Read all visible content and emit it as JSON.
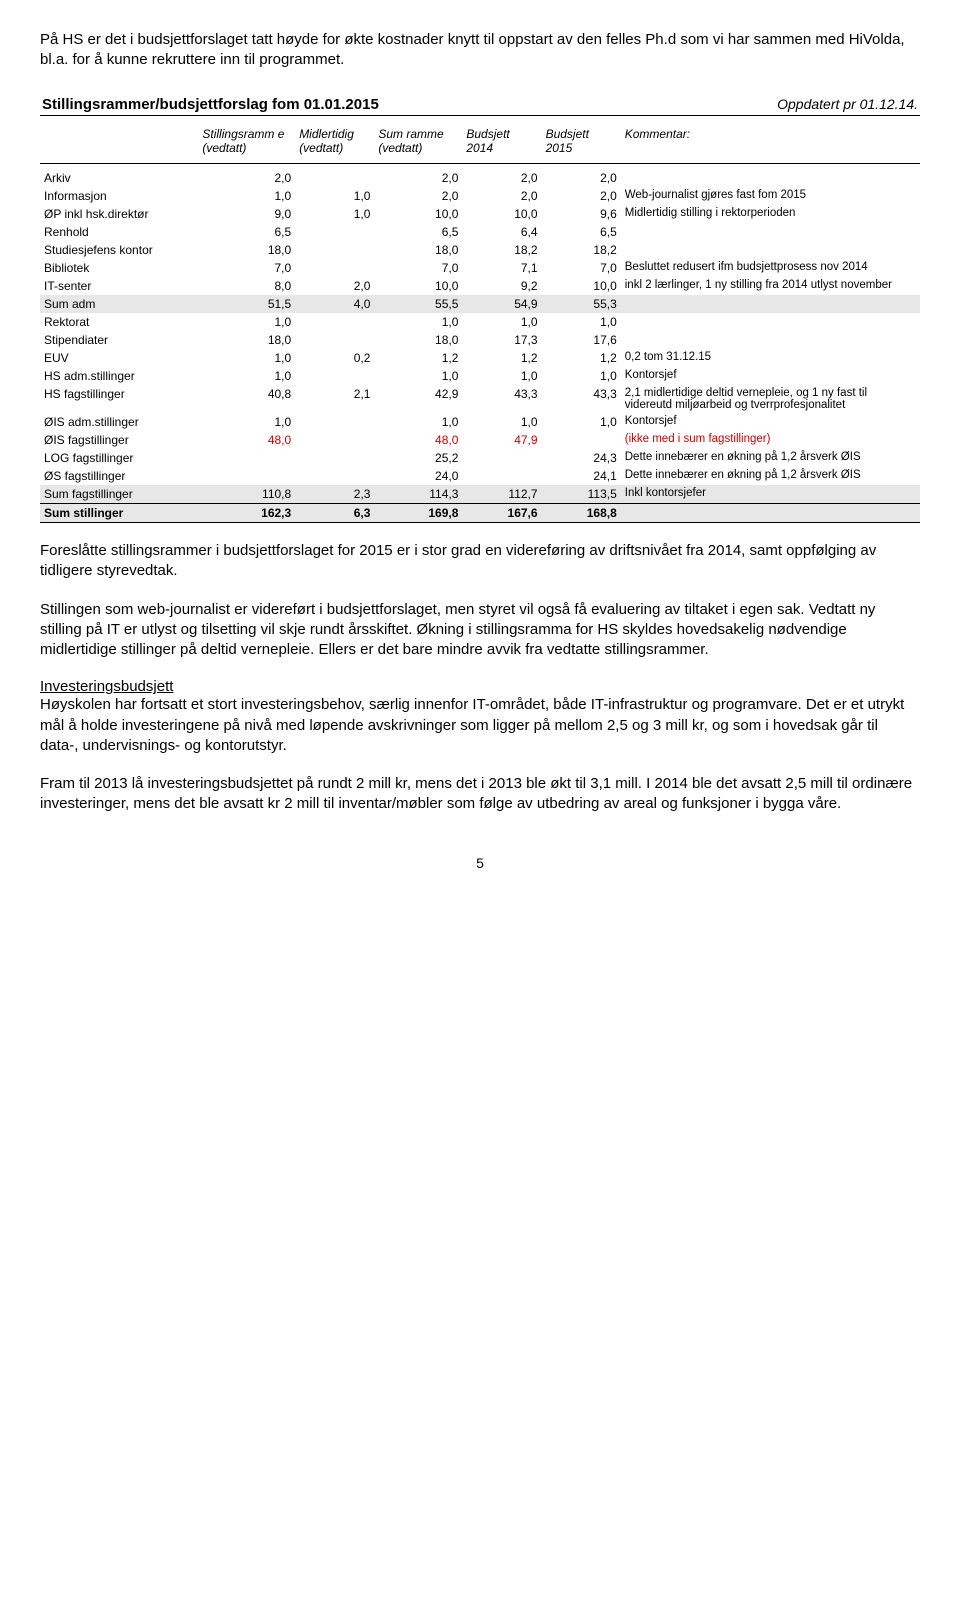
{
  "intro": "På HS er det i budsjettforslaget tatt høyde for økte kostnader knytt til oppstart av den felles Ph.d som vi har sammen med HiVolda, bl.a. for å kunne rekruttere inn til programmet.",
  "table": {
    "title": "Stillingsrammer/budsjettforslag fom 01.01.2015",
    "updated": "Oppdatert pr 01.12.14.",
    "headers": {
      "c0": "",
      "c1": "Stillingsramm e (vedtatt)",
      "c2": "Midlertidig (vedtatt)",
      "c3": "Sum ramme (vedtatt)",
      "c4": "Budsjett 2014",
      "c5": "Budsjett 2015",
      "c6": "Kommentar:"
    },
    "col_widths": [
      "18%",
      "11%",
      "9%",
      "10%",
      "9%",
      "9%",
      "34%"
    ],
    "header_bg": "#d6d6d6",
    "sum_bg": "#e7e7e7",
    "red_color": "#cc0000",
    "font_size_pt": 9,
    "rows": [
      {
        "label": "Arkiv",
        "c1": "2,0",
        "c2": "",
        "c3": "2,0",
        "c4": "2,0",
        "c5": "2,0",
        "comment": ""
      },
      {
        "label": "Informasjon",
        "c1": "1,0",
        "c2": "1,0",
        "c3": "2,0",
        "c4": "2,0",
        "c5": "2,0",
        "comment": "Web-journalist gjøres fast fom 2015"
      },
      {
        "label": "ØP inkl hsk.direktør",
        "c1": "9,0",
        "c2": "1,0",
        "c3": "10,0",
        "c4": "10,0",
        "c5": "9,6",
        "comment": "Midlertidig stilling i rektorperioden"
      },
      {
        "label": "Renhold",
        "c1": "6,5",
        "c2": "",
        "c3": "6,5",
        "c4": "6,4",
        "c5": "6,5",
        "comment": ""
      },
      {
        "label": "Studiesjefens kontor",
        "c1": "18,0",
        "c2": "",
        "c3": "18,0",
        "c4": "18,2",
        "c5": "18,2",
        "comment": ""
      },
      {
        "label": "Bibliotek",
        "c1": "7,0",
        "c2": "",
        "c3": "7,0",
        "c4": "7,1",
        "c5": "7,0",
        "comment": "Besluttet redusert ifm budsjettprosess nov 2014"
      },
      {
        "label": "IT-senter",
        "c1": "8,0",
        "c2": "2,0",
        "c3": "10,0",
        "c4": "9,2",
        "c5": "10,0",
        "comment": "inkl 2 lærlinger, 1 ny stilling fra 2014 utlyst november"
      }
    ],
    "sum_adm": {
      "label": "Sum adm",
      "c1": "51,5",
      "c2": "4,0",
      "c3": "55,5",
      "c4": "54,9",
      "c5": "55,3",
      "comment": ""
    },
    "rows2": [
      {
        "label": "Rektorat",
        "c1": "1,0",
        "c2": "",
        "c3": "1,0",
        "c4": "1,0",
        "c5": "1,0",
        "comment": ""
      },
      {
        "label": "Stipendiater",
        "c1": "18,0",
        "c2": "",
        "c3": "18,0",
        "c4": "17,3",
        "c5": "17,6",
        "comment": ""
      },
      {
        "label": "EUV",
        "c1": "1,0",
        "c2": "0,2",
        "c3": "1,2",
        "c4": "1,2",
        "c5": "1,2",
        "comment": "0,2 tom 31.12.15"
      },
      {
        "label": "HS adm.stillinger",
        "c1": "1,0",
        "c2": "",
        "c3": "1,0",
        "c4": "1,0",
        "c5": "1,0",
        "comment": "Kontorsjef"
      },
      {
        "label": "HS fagstillinger",
        "c1": "40,8",
        "c2": "2,1",
        "c3": "42,9",
        "c4": "43,3",
        "c5": "43,3",
        "comment": "2,1 midlertidige deltid vernepleie, og 1 ny fast til videreutd miljøarbeid og tverrprofesjonalitet"
      },
      {
        "label": "ØIS adm.stillinger",
        "c1": "1,0",
        "c2": "",
        "c3": "1,0",
        "c4": "1,0",
        "c5": "1,0",
        "comment": "Kontorsjef"
      },
      {
        "label": "ØIS fagstillinger",
        "c1": "48,0",
        "c2": "",
        "c3": "48,0",
        "c4": "47,9",
        "c5": "",
        "comment": "(ikke med i sum fagstillinger)",
        "red": true
      },
      {
        "label": "LOG fagstillinger",
        "c1": "",
        "c2": "",
        "c3": "25,2",
        "c4": "",
        "c5": "24,3",
        "comment": "Dette innebærer en økning på 1,2 årsverk ØIS"
      },
      {
        "label": "ØS fagstillinger",
        "c1": "",
        "c2": "",
        "c3": "24,0",
        "c4": "",
        "c5": "24,1",
        "comment": "Dette innebærer en økning på 1,2 årsverk ØIS"
      }
    ],
    "sum_fag": {
      "label": "Sum fagstillinger",
      "c1": "110,8",
      "c2": "2,3",
      "c3": "114,3",
      "c4": "112,7",
      "c5": "113,5",
      "comment": "Inkl kontorsjefer"
    },
    "sum_total": {
      "label": "Sum stillinger",
      "c1": "162,3",
      "c2": "6,3",
      "c3": "169,8",
      "c4": "167,6",
      "c5": "168,8",
      "comment": ""
    }
  },
  "para1": "Foreslåtte stillingsrammer i budsjettforslaget for 2015 er i stor grad en videreføring av driftsnivået fra 2014, samt oppfølging av tidligere styrevedtak.",
  "para2": "Stillingen som web-journalist er videreført i budsjettforslaget, men styret vil også få evaluering av tiltaket i egen sak. Vedtatt ny stilling på IT er utlyst og tilsetting vil skje rundt årsskiftet. Økning i stillingsramma for HS skyldes hovedsakelig nødvendige midlertidige stillinger på deltid vernepleie. Ellers er det bare mindre avvik fra vedtatte stillingsrammer.",
  "invest_head": "Investeringsbudsjett",
  "para3": "Høyskolen har fortsatt et stort investeringsbehov, særlig innenfor IT-området, både IT-infrastruktur og programvare. Det er et utrykt mål å holde investeringene på nivå med løpende avskrivninger som ligger på mellom 2,5 og 3 mill kr, og som i hovedsak går til data-, undervisnings- og kontorutstyr.",
  "para4": "Fram til 2013 lå investeringsbudsjettet på rundt 2 mill kr, mens det i 2013 ble økt til 3,1 mill. I 2014 ble det avsatt 2,5 mill til ordinære investeringer, mens det ble avsatt kr 2 mill til inventar/møbler som følge av utbedring av areal og funksjoner i bygga våre.",
  "page_number": "5"
}
